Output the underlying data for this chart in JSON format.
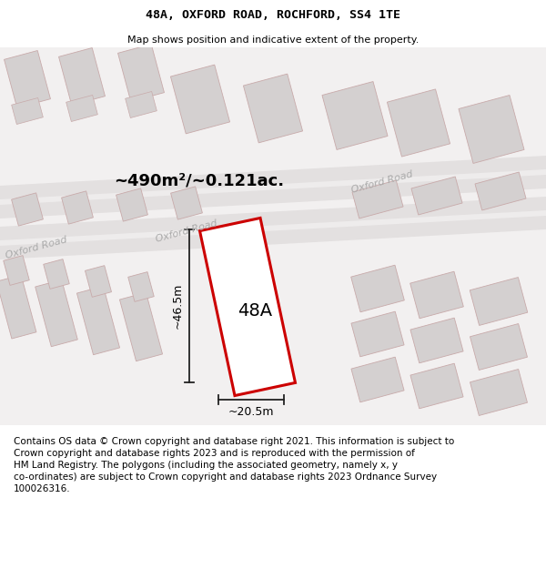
{
  "title": "48A, OXFORD ROAD, ROCHFORD, SS4 1TE",
  "subtitle": "Map shows position and indicative extent of the property.",
  "area_label": "~490m²/~0.121ac.",
  "property_label": "48A",
  "width_label": "~20.5m",
  "height_label": "~46.5m",
  "road_label_upper": "Oxford Road",
  "road_label_lower": "Oxford Road",
  "road_label_left": "Oxford Road",
  "footer_line1": "Contains OS data © Crown copyright and database right 2021. This information is subject to",
  "footer_line2": "Crown copyright and database rights 2023 and is reproduced with the permission of",
  "footer_line3": "HM Land Registry. The polygons (including the associated geometry, namely x, y",
  "footer_line4": "co-ordinates) are subject to Crown copyright and database rights 2023 Ordnance Survey",
  "footer_line5": "100026316.",
  "map_bg": "#f2f0f0",
  "road_fill": "#e3e0e0",
  "road_center": "#eeecec",
  "building_fill": "#d4d0d0",
  "building_stroke": "#c8aaaa",
  "prop_fill": "#ffffff",
  "prop_stroke": "#cc0000",
  "dim_color": "#222222",
  "road_text_color": "#aaaaaa",
  "title_fontsize": 9.5,
  "subtitle_fontsize": 8.0,
  "footer_fontsize": 7.5,
  "area_fontsize": 13,
  "prop_label_fontsize": 14,
  "dim_fontsize": 9,
  "road_fontsize": 8
}
